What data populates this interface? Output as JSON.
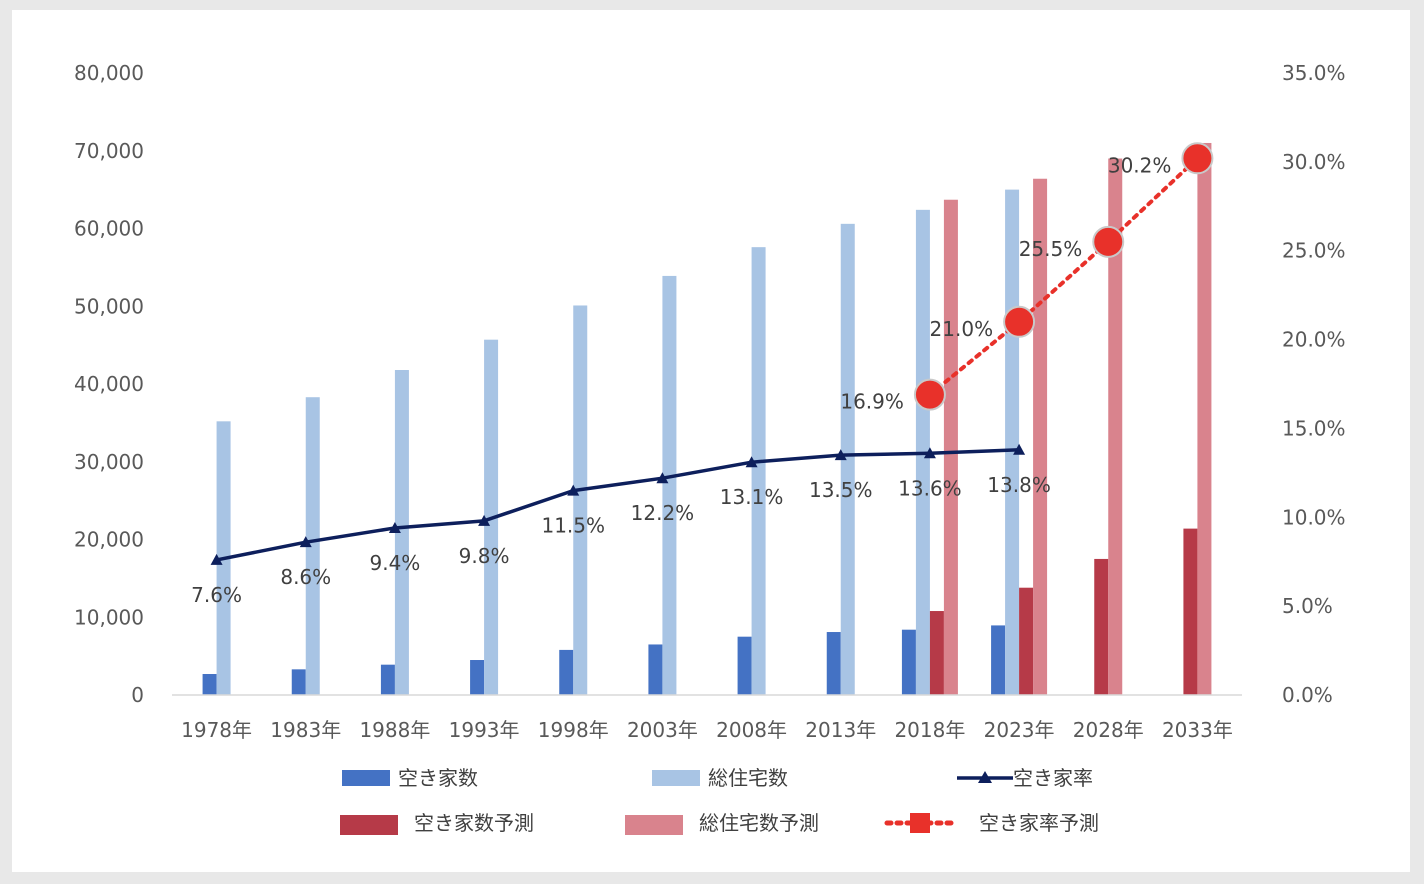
{
  "chart_data": {
    "type": "bar",
    "title": "",
    "categories": [
      "1978年",
      "1983年",
      "1988年",
      "1993年",
      "1998年",
      "2003年",
      "2008年",
      "2013年",
      "2018年",
      "2023年",
      "2028年",
      "2033年"
    ],
    "y_left": {
      "min": 0,
      "max": 80000,
      "ticks": [
        "0",
        "10,000",
        "20,000",
        "30,000",
        "40,000",
        "50,000",
        "60,000",
        "70,000",
        "80,000"
      ]
    },
    "y_right": {
      "min": 0,
      "max": 0.35,
      "ticks": [
        "0.0%",
        "5.0%",
        "10.0%",
        "15.0%",
        "20.0%",
        "25.0%",
        "30.0%",
        "35.0%"
      ]
    },
    "series": [
      {
        "name": "空き家数",
        "kind": "bar",
        "axis": "left",
        "color": "#4472c4",
        "values": [
          2700,
          3300,
          3900,
          4500,
          5800,
          6500,
          7500,
          8100,
          8400,
          8950,
          null,
          null
        ]
      },
      {
        "name": "総住宅数",
        "kind": "bar",
        "axis": "left",
        "color": "#a8c4e4",
        "values": [
          35200,
          38300,
          41800,
          45700,
          50100,
          53900,
          57600,
          60600,
          62400,
          65000,
          null,
          null
        ]
      },
      {
        "name": "空き家率",
        "kind": "line",
        "axis": "right",
        "color": "#0d1f5c",
        "values": [
          0.076,
          0.086,
          0.094,
          0.098,
          0.115,
          0.122,
          0.131,
          0.135,
          0.136,
          0.138,
          null,
          null
        ],
        "labels": [
          "7.6%",
          "8.6%",
          "9.4%",
          "9.8%",
          "11.5%",
          "12.2%",
          "13.1%",
          "13.5%",
          "13.6%",
          "13.8%",
          null,
          null
        ]
      },
      {
        "name": "空き家数予測",
        "kind": "bar",
        "axis": "left",
        "color": "#b63a48",
        "values": [
          null,
          null,
          null,
          null,
          null,
          null,
          null,
          null,
          10800,
          13800,
          17500,
          21400
        ]
      },
      {
        "name": "総住宅数予測",
        "kind": "bar",
        "axis": "left",
        "color": "#d9838d",
        "values": [
          null,
          null,
          null,
          null,
          null,
          null,
          null,
          null,
          63700,
          66400,
          69000,
          71000
        ]
      },
      {
        "name": "空き家率予測",
        "kind": "line",
        "axis": "right",
        "color": "#e8312a",
        "values": [
          null,
          null,
          null,
          null,
          null,
          null,
          null,
          null,
          0.169,
          0.21,
          0.255,
          0.302
        ],
        "labels": [
          null,
          null,
          null,
          null,
          null,
          null,
          null,
          null,
          "16.9%",
          "21.0%",
          "25.5%",
          "30.2%"
        ]
      }
    ],
    "legend": [
      {
        "name": "空き家数",
        "marker": "bar",
        "color": "#4472c4"
      },
      {
        "name": "総住宅数",
        "marker": "bar",
        "color": "#a8c4e4"
      },
      {
        "name": "空き家率",
        "marker": "line-triangle",
        "color": "#0d1f5c"
      },
      {
        "name": "空き家数予測",
        "marker": "bar",
        "color": "#b63a48"
      },
      {
        "name": "総住宅数予測",
        "marker": "bar",
        "color": "#d9838d"
      },
      {
        "name": "空き家率予測",
        "marker": "dotted-square",
        "color": "#e8312a"
      }
    ],
    "legend_position": "bottom"
  }
}
